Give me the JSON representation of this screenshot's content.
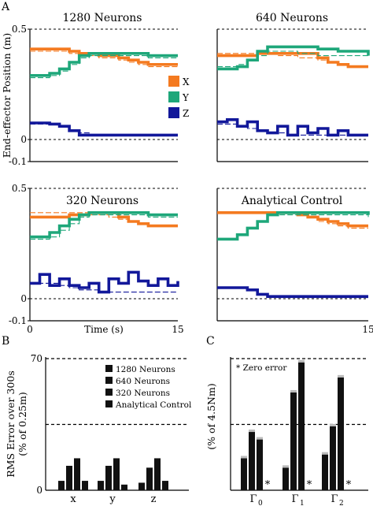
{
  "figure": {
    "panel_labels": [
      "A",
      "B",
      "C"
    ],
    "legend_A": [
      {
        "label": "X",
        "color": "#f47a20"
      },
      {
        "label": "Y",
        "color": "#1ea77a"
      },
      {
        "label": "Z",
        "color": "#12189a"
      }
    ],
    "legend_B": [
      "1280 Neurons",
      "640 Neurons",
      "320 Neurons",
      "Analytical Control"
    ],
    "zero_error_note": "* Zero error",
    "zero_marker": "*",
    "colors": {
      "x": "#f47a20",
      "y": "#1ea77a",
      "z": "#12189a",
      "bar": "#111111",
      "bar_cap": "#bbbbbb"
    }
  },
  "chart_data": [
    {
      "panel": "A",
      "type": "line",
      "title": "1280 Neurons",
      "xlabel": "",
      "ylabel": "End-effector Position (m)",
      "xlim": [
        0,
        15
      ],
      "ylim": [
        -0.1,
        0.5
      ],
      "y_ticks": [
        -0.1,
        0,
        0.5
      ],
      "x_ticks": [],
      "dashed_ref_lines": [
        0,
        0.5
      ],
      "series": [
        {
          "name": "X",
          "x": [
            0,
            2,
            4,
            5,
            7,
            9,
            10,
            11,
            12,
            13,
            15
          ],
          "values": [
            0.41,
            0.41,
            0.4,
            0.39,
            0.38,
            0.37,
            0.36,
            0.35,
            0.34,
            0.34,
            0.34
          ],
          "target": [
            0.4,
            0.4,
            0.39,
            0.38,
            0.37,
            0.36,
            0.35,
            0.34,
            0.33,
            0.33,
            0.33
          ]
        },
        {
          "name": "Y",
          "x": [
            0,
            2,
            3,
            4,
            5,
            6,
            10,
            12,
            15
          ],
          "values": [
            0.29,
            0.3,
            0.32,
            0.35,
            0.38,
            0.39,
            0.39,
            0.38,
            0.38
          ],
          "target": [
            0.28,
            0.29,
            0.31,
            0.34,
            0.37,
            0.38,
            0.38,
            0.37,
            0.37
          ]
        },
        {
          "name": "Z",
          "x": [
            0,
            2,
            3,
            4,
            5,
            6,
            10,
            15
          ],
          "values": [
            0.075,
            0.07,
            0.06,
            0.04,
            0.02,
            0.02,
            0.02,
            0.02
          ],
          "target": [
            0.07,
            0.07,
            0.06,
            0.04,
            0.03,
            0.02,
            0.02,
            0.02
          ]
        }
      ]
    },
    {
      "panel": "A",
      "type": "line",
      "title": "640 Neurons",
      "xlabel": "",
      "ylabel": "",
      "xlim": [
        0,
        15
      ],
      "ylim": [
        -0.1,
        0.5
      ],
      "y_ticks": [],
      "x_ticks": [],
      "dashed_ref_lines": [
        0,
        0.5
      ],
      "series": [
        {
          "name": "X",
          "x": [
            0,
            2,
            4,
            6,
            8,
            10,
            11,
            12,
            13,
            15
          ],
          "values": [
            0.38,
            0.38,
            0.39,
            0.39,
            0.39,
            0.37,
            0.35,
            0.34,
            0.33,
            0.33
          ],
          "target": [
            0.39,
            0.39,
            0.39,
            0.38,
            0.37,
            0.36,
            0.35,
            0.34,
            0.33,
            0.33
          ]
        },
        {
          "name": "Y",
          "x": [
            0,
            1,
            2,
            3,
            4,
            5,
            6,
            8,
            10,
            12,
            15
          ],
          "values": [
            0.32,
            0.32,
            0.33,
            0.36,
            0.4,
            0.42,
            0.42,
            0.42,
            0.41,
            0.4,
            0.38
          ],
          "target": [
            0.33,
            0.33,
            0.34,
            0.36,
            0.38,
            0.4,
            0.4,
            0.39,
            0.38,
            0.38,
            0.37
          ]
        },
        {
          "name": "Z",
          "x": [
            0,
            1,
            2,
            3,
            4,
            5,
            6,
            7,
            8,
            9,
            10,
            11,
            12,
            13,
            15
          ],
          "values": [
            0.08,
            0.09,
            0.06,
            0.08,
            0.04,
            0.03,
            0.06,
            0.02,
            0.06,
            0.03,
            0.05,
            0.02,
            0.04,
            0.02,
            0.02
          ],
          "target": [
            0.07,
            0.07,
            0.06,
            0.05,
            0.04,
            0.03,
            0.03,
            0.02,
            0.02,
            0.02,
            0.02,
            0.02,
            0.02,
            0.02,
            0.02
          ]
        }
      ]
    },
    {
      "panel": "A",
      "type": "line",
      "title": "320 Neurons",
      "xlabel": "Time (s)",
      "ylabel": "",
      "xlim": [
        0,
        15
      ],
      "ylim": [
        -0.1,
        0.5
      ],
      "y_ticks": [
        -0.1,
        0,
        0.5
      ],
      "x_ticks": [
        0,
        15
      ],
      "dashed_ref_lines": [
        0,
        0.5
      ],
      "series": [
        {
          "name": "X",
          "x": [
            0,
            2,
            4,
            6,
            8,
            9,
            10,
            11,
            12,
            13,
            15
          ],
          "values": [
            0.37,
            0.37,
            0.38,
            0.39,
            0.39,
            0.37,
            0.35,
            0.34,
            0.33,
            0.33,
            0.33
          ],
          "target": [
            0.39,
            0.39,
            0.39,
            0.38,
            0.37,
            0.36,
            0.35,
            0.34,
            0.33,
            0.33,
            0.33
          ]
        },
        {
          "name": "Y",
          "x": [
            0,
            2,
            3,
            4,
            5,
            6,
            8,
            10,
            12,
            15
          ],
          "values": [
            0.28,
            0.3,
            0.33,
            0.36,
            0.38,
            0.39,
            0.39,
            0.39,
            0.38,
            0.38
          ],
          "target": [
            0.27,
            0.28,
            0.31,
            0.34,
            0.37,
            0.38,
            0.38,
            0.38,
            0.37,
            0.37
          ]
        },
        {
          "name": "Z",
          "x": [
            0,
            1,
            2,
            3,
            4,
            5,
            6,
            7,
            8,
            9,
            10,
            11,
            12,
            13,
            14,
            15
          ],
          "values": [
            0.07,
            0.11,
            0.06,
            0.09,
            0.06,
            0.05,
            0.07,
            0.03,
            0.09,
            0.07,
            0.12,
            0.08,
            0.06,
            0.09,
            0.06,
            0.08
          ],
          "target": [
            0.07,
            0.07,
            0.07,
            0.06,
            0.05,
            0.04,
            0.04,
            0.03,
            0.03,
            0.03,
            0.03,
            0.03,
            0.03,
            0.03,
            0.03,
            0.03
          ]
        }
      ]
    },
    {
      "panel": "A",
      "type": "line",
      "title": "Analytical Control",
      "xlabel": "",
      "ylabel": "",
      "xlim": [
        0,
        15
      ],
      "ylim": [
        -0.1,
        0.5
      ],
      "y_ticks": [],
      "x_ticks": [
        15
      ],
      "dashed_ref_lines": [
        0,
        0.5
      ],
      "series": [
        {
          "name": "X",
          "x": [
            0,
            2,
            4,
            6,
            8,
            9,
            10,
            11,
            12,
            13,
            15
          ],
          "values": [
            0.39,
            0.39,
            0.39,
            0.39,
            0.38,
            0.37,
            0.36,
            0.35,
            0.34,
            0.33,
            0.33
          ],
          "target": [
            0.39,
            0.39,
            0.39,
            0.39,
            0.38,
            0.37,
            0.35,
            0.34,
            0.33,
            0.32,
            0.32
          ]
        },
        {
          "name": "Y",
          "x": [
            0,
            1,
            2,
            3,
            4,
            5,
            6,
            10,
            15
          ],
          "values": [
            0.27,
            0.27,
            0.29,
            0.32,
            0.35,
            0.38,
            0.39,
            0.39,
            0.38
          ],
          "target": [
            0.27,
            0.27,
            0.29,
            0.32,
            0.35,
            0.38,
            0.38,
            0.38,
            0.37
          ]
        },
        {
          "name": "Z",
          "x": [
            0,
            2,
            3,
            4,
            5,
            6,
            10,
            15
          ],
          "values": [
            0.05,
            0.05,
            0.04,
            0.02,
            0.01,
            0.01,
            0.01,
            0.01
          ],
          "target": [
            0.05,
            0.05,
            0.04,
            0.02,
            0.01,
            0.005,
            0.005,
            0.005
          ]
        }
      ]
    },
    {
      "panel": "B",
      "type": "bar",
      "title": "",
      "ylabel": "RMS Error over 300s (% of 0.25m)",
      "ylim": [
        0,
        70
      ],
      "y_ticks": [
        0,
        70
      ],
      "dashed_ref_lines": [
        35,
        70
      ],
      "categories": [
        "x",
        "y",
        "z"
      ],
      "series": [
        {
          "name": "1280 Neurons",
          "values": [
            5,
            5,
            4
          ]
        },
        {
          "name": "640 Neurons",
          "values": [
            13,
            13,
            12
          ]
        },
        {
          "name": "320 Neurons",
          "values": [
            17,
            17,
            17
          ]
        },
        {
          "name": "Analytical Control",
          "values": [
            5,
            3,
            5
          ]
        }
      ]
    },
    {
      "panel": "C",
      "type": "bar",
      "title": "",
      "ylabel": "(% of 4.5Nm)",
      "ylim": [
        0,
        70
      ],
      "dashed_ref_lines": [
        35,
        70
      ],
      "categories": [
        "Γ",
        "Γ",
        "Γ"
      ],
      "category_subscripts": [
        "0",
        "1",
        "2"
      ],
      "series": [
        {
          "name": "1280 Neurons",
          "values": [
            17,
            12,
            19
          ]
        },
        {
          "name": "640 Neurons",
          "values": [
            31,
            52,
            34
          ]
        },
        {
          "name": "320 Neurons",
          "values": [
            27,
            68,
            60
          ]
        },
        {
          "name": "Analytical Control",
          "values": [
            0,
            0,
            0
          ]
        }
      ]
    }
  ]
}
